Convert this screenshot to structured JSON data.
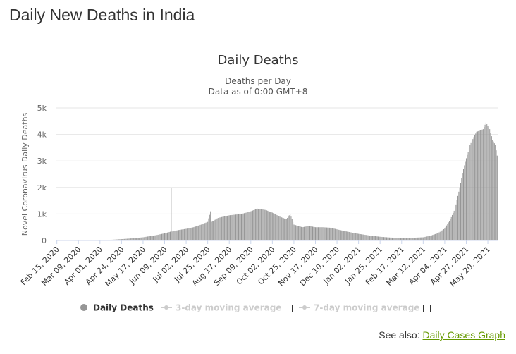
{
  "page": {
    "heading": "Daily New Deaths in India",
    "see_also_label": "See also:",
    "see_also_link": "Daily Cases Graph"
  },
  "colors": {
    "bar": "#969696",
    "grid": "#e6e6e6",
    "link": "#669900",
    "legend_inactive": "#cccccc"
  },
  "chart_data": {
    "type": "bar",
    "title": "Daily Deaths",
    "subtitle": [
      "Deaths per Day",
      "Data as of 0:00 GMT+8"
    ],
    "ylabel": "Novel Coronavirus Daily Deaths",
    "xlabel": "",
    "ylim": [
      0,
      5000
    ],
    "yticks": [
      {
        "value": 0,
        "label": "0"
      },
      {
        "value": 1000,
        "label": "1k"
      },
      {
        "value": 2000,
        "label": "2k"
      },
      {
        "value": 3000,
        "label": "3k"
      },
      {
        "value": 4000,
        "label": "4k"
      },
      {
        "value": 5000,
        "label": "5k"
      }
    ],
    "grid": true,
    "x_start": "2020-02-15",
    "x_end": "2021-05-30",
    "xticks": [
      "Feb 15, 2020",
      "Mar 09, 2020",
      "Apr 01, 2020",
      "Apr 24, 2020",
      "May 17, 2020",
      "Jun 09, 2020",
      "Jul 02, 2020",
      "Jul 25, 2020",
      "Aug 17, 2020",
      "Sep 09, 2020",
      "Oct 02, 2020",
      "Oct 25, 2020",
      "Nov 17, 2020",
      "Dec 10, 2020",
      "Jan 02, 2021",
      "Jan 25, 2021",
      "Feb 17, 2021",
      "Mar 12, 2021",
      "Apr 04, 2021",
      "Apr 27, 2021",
      "May 20, 2021"
    ],
    "series": [
      {
        "name": "Daily Deaths",
        "points": [
          [
            "2020-02-15",
            0
          ],
          [
            "2020-03-10",
            0
          ],
          [
            "2020-03-25",
            3
          ],
          [
            "2020-04-05",
            15
          ],
          [
            "2020-04-15",
            30
          ],
          [
            "2020-04-24",
            50
          ],
          [
            "2020-05-05",
            80
          ],
          [
            "2020-05-17",
            120
          ],
          [
            "2020-05-31",
            200
          ],
          [
            "2020-06-09",
            270
          ],
          [
            "2020-06-15",
            330
          ],
          [
            "2020-06-16",
            1980
          ],
          [
            "2020-06-17",
            340
          ],
          [
            "2020-06-25",
            400
          ],
          [
            "2020-07-02",
            440
          ],
          [
            "2020-07-10",
            500
          ],
          [
            "2020-07-18",
            600
          ],
          [
            "2020-07-25",
            700
          ],
          [
            "2020-07-28",
            1100
          ],
          [
            "2020-07-29",
            700
          ],
          [
            "2020-08-05",
            850
          ],
          [
            "2020-08-17",
            950
          ],
          [
            "2020-08-30",
            1000
          ],
          [
            "2020-09-09",
            1100
          ],
          [
            "2020-09-16",
            1200
          ],
          [
            "2020-09-25",
            1150
          ],
          [
            "2020-10-02",
            1050
          ],
          [
            "2020-10-10",
            900
          ],
          [
            "2020-10-17",
            800
          ],
          [
            "2020-10-21",
            1000
          ],
          [
            "2020-10-25",
            600
          ],
          [
            "2020-11-03",
            500
          ],
          [
            "2020-11-10",
            550
          ],
          [
            "2020-11-17",
            500
          ],
          [
            "2020-11-25",
            500
          ],
          [
            "2020-12-03",
            480
          ],
          [
            "2020-12-10",
            420
          ],
          [
            "2020-12-20",
            340
          ],
          [
            "2021-01-02",
            250
          ],
          [
            "2021-01-15",
            180
          ],
          [
            "2021-01-25",
            140
          ],
          [
            "2021-02-05",
            110
          ],
          [
            "2021-02-17",
            95
          ],
          [
            "2021-02-28",
            100
          ],
          [
            "2021-03-12",
            120
          ],
          [
            "2021-03-20",
            180
          ],
          [
            "2021-03-28",
            280
          ],
          [
            "2021-04-04",
            450
          ],
          [
            "2021-04-10",
            800
          ],
          [
            "2021-04-15",
            1200
          ],
          [
            "2021-04-20",
            2000
          ],
          [
            "2021-04-24",
            2700
          ],
          [
            "2021-04-27",
            3100
          ],
          [
            "2021-05-01",
            3600
          ],
          [
            "2021-05-05",
            3900
          ],
          [
            "2021-05-08",
            4100
          ],
          [
            "2021-05-12",
            4150
          ],
          [
            "2021-05-15",
            4200
          ],
          [
            "2021-05-18",
            4450
          ],
          [
            "2021-05-22",
            4200
          ],
          [
            "2021-05-25",
            3800
          ],
          [
            "2021-05-28",
            3600
          ],
          [
            "2021-05-30",
            3200
          ]
        ]
      }
    ],
    "legend": {
      "placement": "bottom",
      "items": [
        {
          "label": "Daily Deaths",
          "active": true,
          "checkbox": false
        },
        {
          "label": "3-day moving average",
          "active": false,
          "checkbox": true
        },
        {
          "label": "7-day moving average",
          "active": false,
          "checkbox": true
        }
      ]
    }
  }
}
